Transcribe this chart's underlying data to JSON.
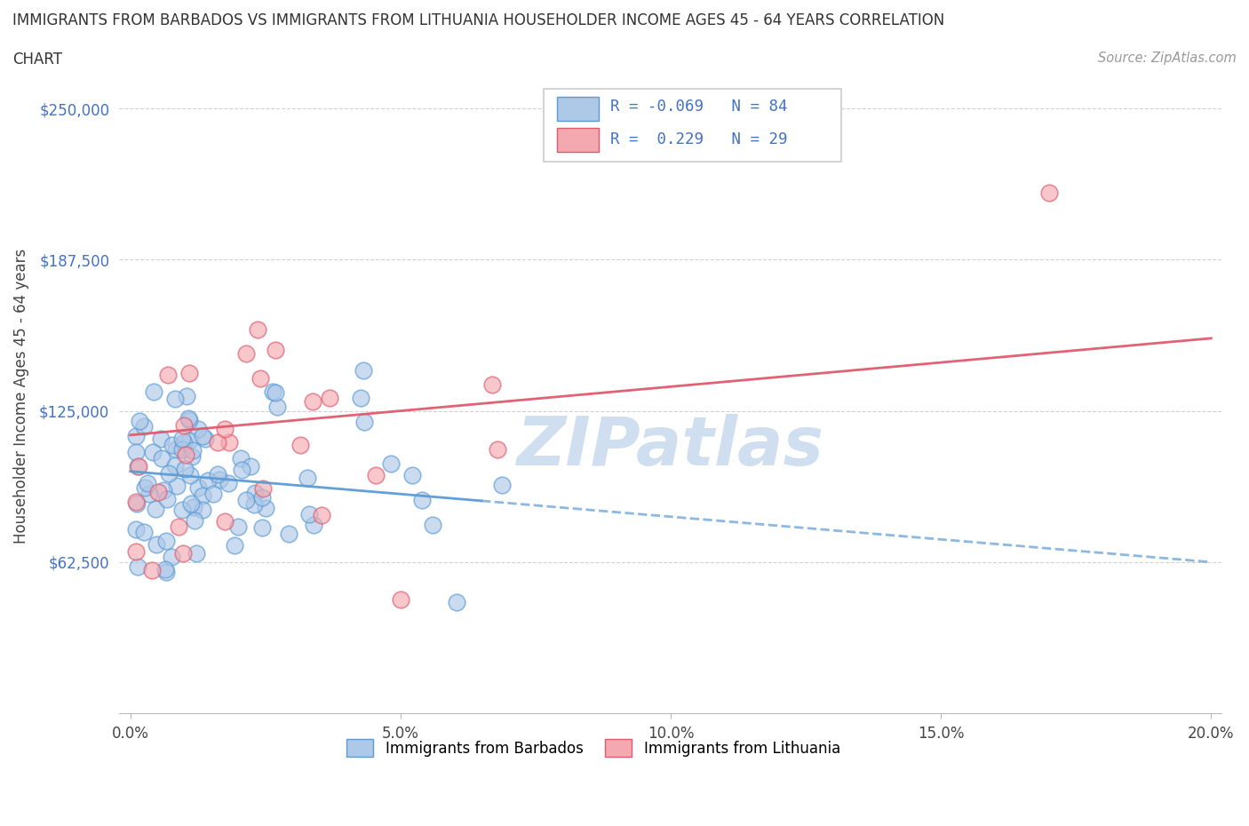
{
  "title_line1": "IMMIGRANTS FROM BARBADOS VS IMMIGRANTS FROM LITHUANIA HOUSEHOLDER INCOME AGES 45 - 64 YEARS CORRELATION",
  "title_line2": "CHART",
  "source": "Source: ZipAtlas.com",
  "ylabel": "Householder Income Ages 45 - 64 years",
  "xlim": [
    -0.002,
    0.202
  ],
  "ylim": [
    0,
    262000
  ],
  "yticks": [
    62500,
    125000,
    187500,
    250000
  ],
  "ytick_labels": [
    "$62,500",
    "$125,000",
    "$187,500",
    "$250,000"
  ],
  "xticks": [
    0.0,
    0.05,
    0.1,
    0.15,
    0.2
  ],
  "xtick_labels": [
    "0.0%",
    "5.0%",
    "10.0%",
    "15.0%",
    "20.0%"
  ],
  "barbados_color": "#aec8e8",
  "barbados_edge": "#5b9bd5",
  "lithuania_color": "#f4a9b0",
  "lithuania_edge": "#e05a6e",
  "barbados_R": -0.069,
  "barbados_N": 84,
  "lithuania_R": 0.229,
  "lithuania_N": 29,
  "barbados_line_color": "#5b9bd5",
  "lithuania_line_color": "#e05a6e",
  "watermark": "ZIPatlas",
  "watermark_color": "#d0dff0",
  "background_color": "#ffffff",
  "grid_color": "#cccccc",
  "legend_R_color": "#4472c4",
  "ytick_color": "#4472c4"
}
